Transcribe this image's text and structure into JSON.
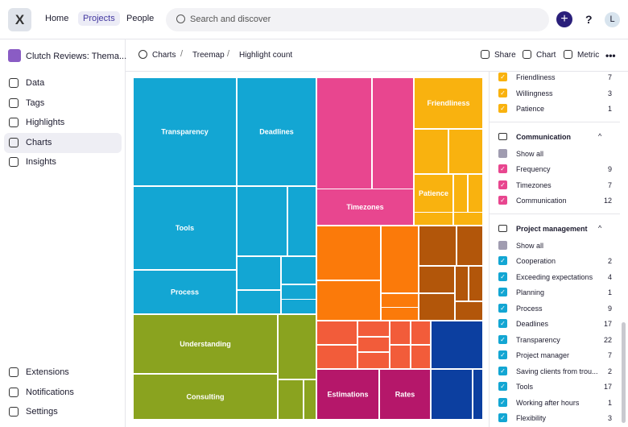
{
  "topbar": {
    "logo": "X",
    "nav": [
      "Home",
      "Projects",
      "People"
    ],
    "search": "Search and discover",
    "help": "?",
    "avatar": "L"
  },
  "sidebar": {
    "project": "Clutch Reviews: Thema...",
    "items": [
      "Data",
      "Tags",
      "Highlights",
      "Charts",
      "Insights"
    ],
    "bottom": [
      "Extensions",
      "Notifications",
      "Settings"
    ]
  },
  "breadcrumb": [
    "Charts",
    "Treemap",
    "Highlight count"
  ],
  "actions": [
    "Share",
    "Chart",
    "Metric"
  ],
  "treemap": {
    "labels": [
      "Transparency",
      "Deadlines",
      "Tools",
      "Process",
      "Timezones",
      "Friendliness",
      "Patience",
      "Understanding",
      "Consulting",
      "Estimations",
      "Rates"
    ]
  },
  "panel": {
    "sections": [
      {
        "color": "#f9b20f",
        "items": [
          {
            "name": "Friendliness",
            "count": 7
          },
          {
            "name": "Willingness",
            "count": 3
          },
          {
            "name": "Patience",
            "count": 1
          }
        ]
      },
      {
        "title": "Communication",
        "color": "#e8468f",
        "show_all": "Show all",
        "items": [
          {
            "name": "Frequency",
            "count": 9
          },
          {
            "name": "Timezones",
            "count": 7
          },
          {
            "name": "Communication",
            "count": 12
          }
        ]
      },
      {
        "title": "Project management",
        "color": "#13a6d3",
        "show_all": "Show all",
        "items": [
          {
            "name": "Cooperation",
            "count": 2
          },
          {
            "name": "Exceeding expectations",
            "count": 4
          },
          {
            "name": "Planning",
            "count": 1
          },
          {
            "name": "Process",
            "count": 9
          },
          {
            "name": "Deadlines",
            "count": 17
          },
          {
            "name": "Transparency",
            "count": 22
          },
          {
            "name": "Project manager",
            "count": 7
          },
          {
            "name": "Saving clients from trou...",
            "count": 2
          },
          {
            "name": "Tools",
            "count": 17
          },
          {
            "name": "Working after hours",
            "count": 1
          },
          {
            "name": "Flexibility",
            "count": 3
          }
        ]
      }
    ]
  }
}
